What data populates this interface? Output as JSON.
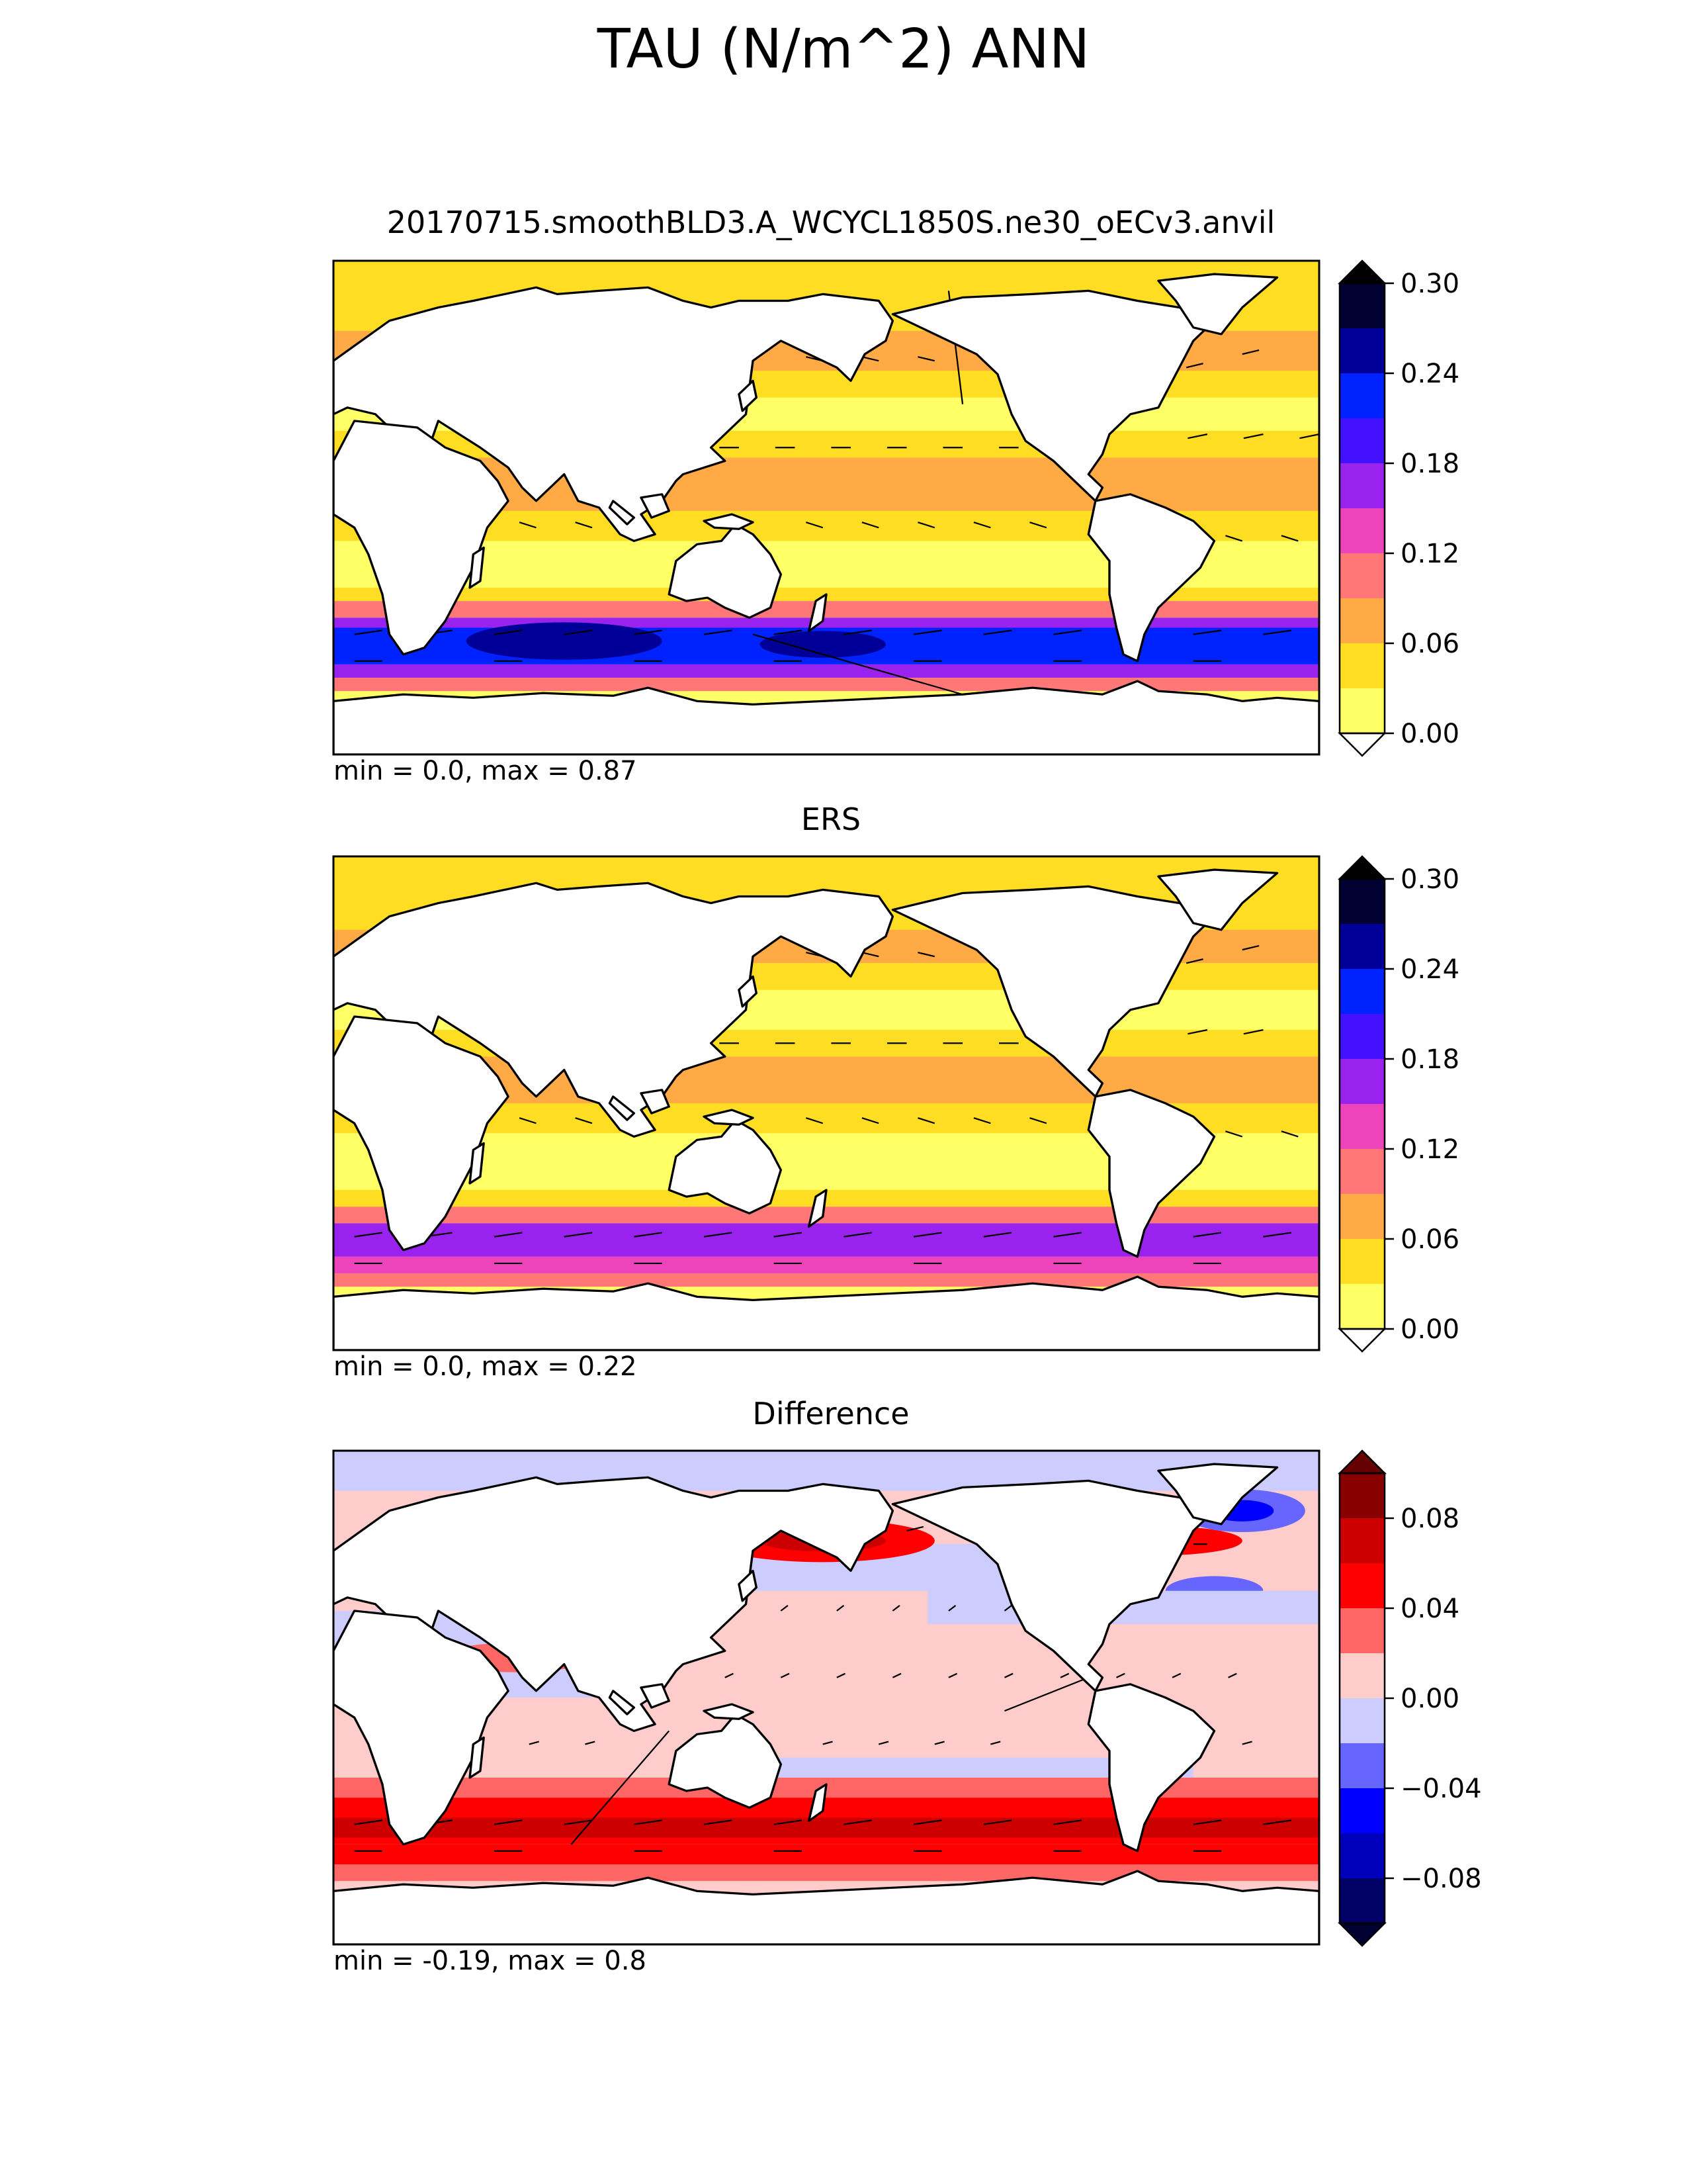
{
  "figure": {
    "title": "TAU (N/m^2) ANN"
  },
  "panels": [
    {
      "id": "test",
      "title": "20170715.smoothBLD3.A_WCYCL1850S.ne30_oECv3.anvil",
      "stats": "min = 0.0, max = 0.87",
      "colorbar": {
        "ticks": [
          "0.00",
          "0.06",
          "0.12",
          "0.18",
          "0.24",
          "0.30"
        ],
        "colors": [
          "#ffff66",
          "#ffdd22",
          "#ffaa44",
          "#ff7777",
          "#ee44bb",
          "#9922ee",
          "#4411ff",
          "#0022ff",
          "#000099",
          "#000033"
        ],
        "extend_under": "#ffffff",
        "extend_over": "#000000"
      }
    },
    {
      "id": "reference",
      "title": "ERS",
      "stats": "min = 0.0, max = 0.22",
      "colorbar": {
        "ticks": [
          "0.00",
          "0.06",
          "0.12",
          "0.18",
          "0.24",
          "0.30"
        ],
        "colors": [
          "#ffff66",
          "#ffdd22",
          "#ffaa44",
          "#ff7777",
          "#ee44bb",
          "#9922ee",
          "#4411ff",
          "#0022ff",
          "#000099",
          "#000033"
        ],
        "extend_under": "#ffffff",
        "extend_over": "#000000"
      }
    },
    {
      "id": "difference",
      "title": "Difference",
      "stats": "min = -0.19, max = 0.8",
      "colorbar": {
        "ticks": [
          "−0.08",
          "−0.04",
          "0.00",
          "0.04",
          "0.08"
        ],
        "colors": [
          "#000066",
          "#0000bb",
          "#0000ff",
          "#6666ff",
          "#ccccff",
          "#ffcccc",
          "#ff6666",
          "#ff0000",
          "#cc0000",
          "#880000"
        ],
        "extend_under": "#000033",
        "extend_over": "#660000"
      }
    }
  ]
}
